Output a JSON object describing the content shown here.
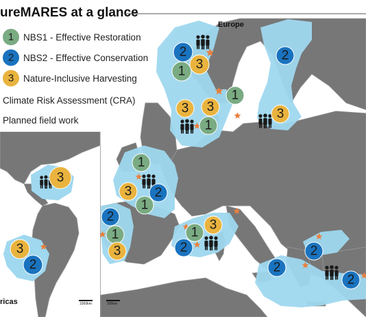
{
  "title": "ureMARES at a glance",
  "legend": {
    "nbs1": {
      "number": "1",
      "label": "NBS1 - Effective Restoration"
    },
    "nbs2": {
      "number": "2",
      "label": "NBS2 - Effective Conservation"
    },
    "nbs3": {
      "number": "3",
      "label": "Nature-Inclusive Harvesting"
    },
    "cra": {
      "label": "Climate Risk Assessment (CRA)"
    },
    "field": {
      "label": "Planned field work"
    }
  },
  "regions": {
    "europe": "Europe",
    "americas": "ricas"
  },
  "scales": {
    "americas": "1000km",
    "europe": "200km"
  },
  "colors": {
    "nbs1": "#7aab82",
    "nbs2": "#1a73bf",
    "nbs3": "#e9b33e",
    "sea_highlight": "#9fd8ef",
    "land": "#777777",
    "sea": "#ffffff",
    "star": "#e8803f"
  },
  "markers": {
    "europe": [
      {
        "type": "nbs2",
        "label": "2"
      },
      {
        "type": "nbs3",
        "label": "3"
      },
      {
        "type": "nbs1",
        "label": "1"
      },
      {
        "type": "nbs1",
        "label": "1"
      },
      {
        "type": "nbs3",
        "label": "3"
      },
      {
        "type": "nbs3",
        "label": "3"
      },
      {
        "type": "nbs1",
        "label": "1"
      },
      {
        "type": "nbs2",
        "label": "2"
      },
      {
        "type": "nbs3",
        "label": "3"
      },
      {
        "type": "nbs1",
        "label": "1"
      },
      {
        "type": "nbs3",
        "label": "3"
      },
      {
        "type": "nbs2",
        "label": "2"
      },
      {
        "type": "nbs1",
        "label": "1"
      },
      {
        "type": "nbs2",
        "label": "2"
      },
      {
        "type": "nbs1",
        "label": "1"
      },
      {
        "type": "nbs3",
        "label": "3"
      },
      {
        "type": "nbs1",
        "label": "1"
      },
      {
        "type": "nbs3",
        "label": "3"
      },
      {
        "type": "nbs2",
        "label": "2"
      },
      {
        "type": "nbs2",
        "label": "2"
      },
      {
        "type": "nbs2",
        "label": "2"
      },
      {
        "type": "nbs2",
        "label": "2"
      }
    ],
    "americas": [
      {
        "type": "nbs3",
        "label": "3"
      },
      {
        "type": "nbs3",
        "label": "3"
      },
      {
        "type": "nbs2",
        "label": "2"
      }
    ]
  }
}
